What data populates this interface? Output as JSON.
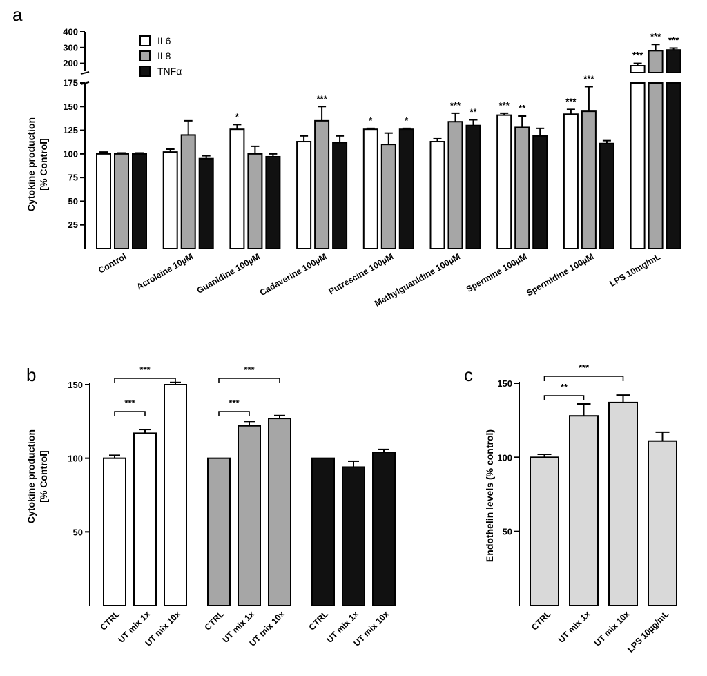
{
  "colors": {
    "IL6": "#ffffff",
    "IL8": "#a6a6a6",
    "TNFa": "#111111",
    "endothelin": "#d9d9d9"
  },
  "chart_data": [
    {
      "panel": "a",
      "type": "bar",
      "ylabel_line1": "Cytokine production",
      "ylabel_line2": "[% Control]",
      "ylim_lower": [
        0,
        175
      ],
      "ylim_upper": [
        150,
        400
      ],
      "axis_break": true,
      "yticks_lower": [
        25,
        50,
        75,
        100,
        125,
        150,
        175
      ],
      "yticks_upper": [
        200,
        300,
        400
      ],
      "legend": [
        {
          "name": "IL6",
          "color": "#ffffff"
        },
        {
          "name": "IL8",
          "color": "#a6a6a6"
        },
        {
          "name": "TNFα",
          "color": "#111111"
        }
      ],
      "categories": [
        "Control",
        "Acroleine 10µM",
        "Guanidine 100µM",
        "Cadaverine 100µM",
        "Putrescine 100µM",
        "Methylguanidine 100µM",
        "Spermine 100µM",
        "Spermidine 100µM",
        "LPS 10mg/mL"
      ],
      "series": [
        {
          "name": "IL6",
          "values": [
            100,
            102,
            126,
            113,
            126,
            113,
            141,
            142,
            185
          ],
          "errors": [
            2,
            3,
            5,
            6,
            1,
            3,
            2,
            5,
            15
          ],
          "sig": [
            "",
            "",
            "*",
            "",
            "*",
            "",
            "***",
            "***",
            "***"
          ]
        },
        {
          "name": "IL8",
          "values": [
            100,
            120,
            100,
            135,
            110,
            134,
            128,
            145,
            280
          ],
          "errors": [
            1,
            15,
            8,
            15,
            12,
            9,
            12,
            26,
            40
          ],
          "sig": [
            "",
            "",
            "",
            "***",
            "",
            "***",
            "**",
            "***",
            "***"
          ]
        },
        {
          "name": "TNFα",
          "values": [
            100,
            95,
            97,
            112,
            126,
            130,
            119,
            111,
            285
          ],
          "errors": [
            1,
            3,
            3,
            7,
            1,
            6,
            8,
            3,
            12
          ],
          "sig": [
            "",
            "",
            "",
            "",
            "*",
            "**",
            "",
            "",
            "***"
          ]
        }
      ]
    },
    {
      "panel": "b",
      "type": "bar",
      "ylabel_line1": "Cytokine production",
      "ylabel_line2": "[% Control]",
      "ylim": [
        0,
        150
      ],
      "yticks": [
        50,
        100,
        150
      ],
      "groups": [
        {
          "series": "IL6",
          "color": "#ffffff",
          "categories": [
            "CTRL",
            "UT mix 1x",
            "UT mix 10x"
          ],
          "values": [
            100,
            117,
            150
          ],
          "errors": [
            2,
            2.5,
            1.5
          ]
        },
        {
          "series": "IL8",
          "color": "#a6a6a6",
          "categories": [
            "CTRL",
            "UT mix 1x",
            "UT mix 10x"
          ],
          "values": [
            100,
            122,
            127
          ],
          "errors": [
            0,
            3,
            2
          ]
        },
        {
          "series": "TNFα",
          "color": "#111111",
          "categories": [
            "CTRL",
            "UT mix 1x",
            "UT mix 10x"
          ],
          "values": [
            100,
            94,
            104
          ],
          "errors": [
            0,
            4,
            2
          ]
        }
      ],
      "brackets": [
        {
          "group": 0,
          "from": 0,
          "to": 1,
          "label": "***"
        },
        {
          "group": 0,
          "from": 0,
          "to": 2,
          "label": "***"
        },
        {
          "group": 1,
          "from": 0,
          "to": 1,
          "label": "***"
        },
        {
          "group": 1,
          "from": 0,
          "to": 2,
          "label": "***"
        }
      ]
    },
    {
      "panel": "c",
      "type": "bar",
      "ylabel": "Endothelin levels (% control)",
      "ylim": [
        0,
        150
      ],
      "yticks": [
        50,
        100,
        150
      ],
      "categories": [
        "CTRL",
        "UT mix 1x",
        "UT mix 10x",
        "LPS 10µg/mL"
      ],
      "values": [
        100,
        128,
        137,
        111
      ],
      "errors": [
        2,
        8,
        5,
        6
      ],
      "color": "#d9d9d9",
      "brackets": [
        {
          "from": 0,
          "to": 1,
          "label": "**"
        },
        {
          "from": 0,
          "to": 2,
          "label": "***"
        }
      ]
    }
  ]
}
